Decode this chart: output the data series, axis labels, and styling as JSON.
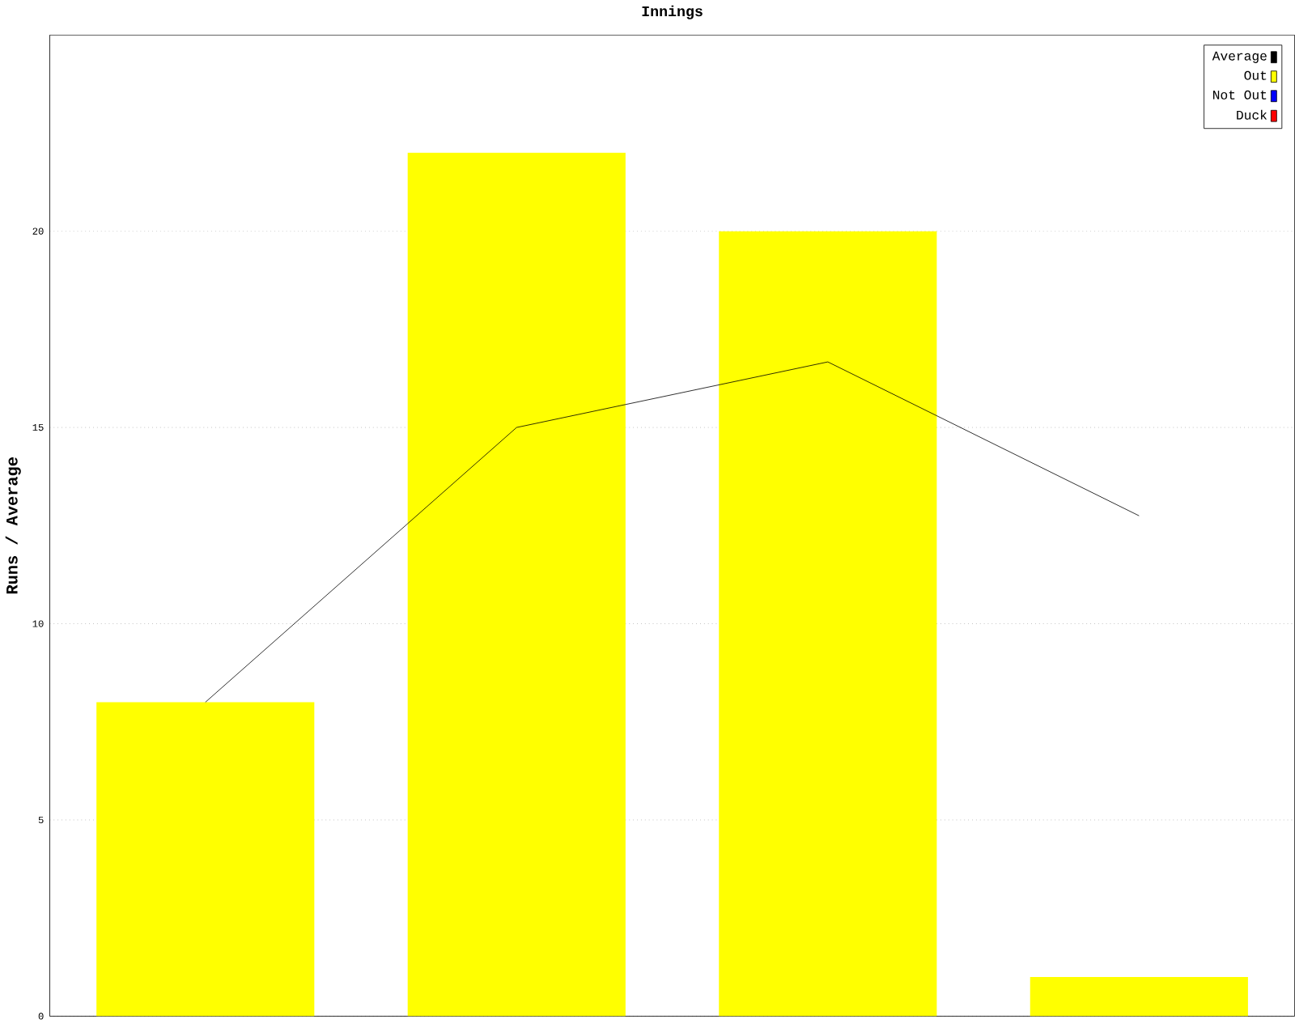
{
  "chart_data": {
    "type": "bar",
    "title": "Innings",
    "ylabel": "Runs / Average",
    "categories": [
      null,
      null,
      null,
      null
    ],
    "series": [
      {
        "name": "Average",
        "type": "line",
        "color": "#000000",
        "values": [
          8,
          15,
          16.67,
          12.75
        ]
      },
      {
        "name": "Out",
        "color": "#ffff00",
        "values": [
          8,
          22,
          20,
          1
        ]
      },
      {
        "name": "Not Out",
        "color": "#0000ff",
        "values": [
          null,
          null,
          null,
          null
        ]
      },
      {
        "name": "Duck",
        "color": "#ff0000",
        "values": [
          null,
          null,
          null,
          null
        ]
      }
    ],
    "ylim": [
      0,
      25
    ],
    "yticks": [
      0,
      5,
      10,
      15,
      20
    ],
    "grid": "y",
    "legend": "top right"
  }
}
